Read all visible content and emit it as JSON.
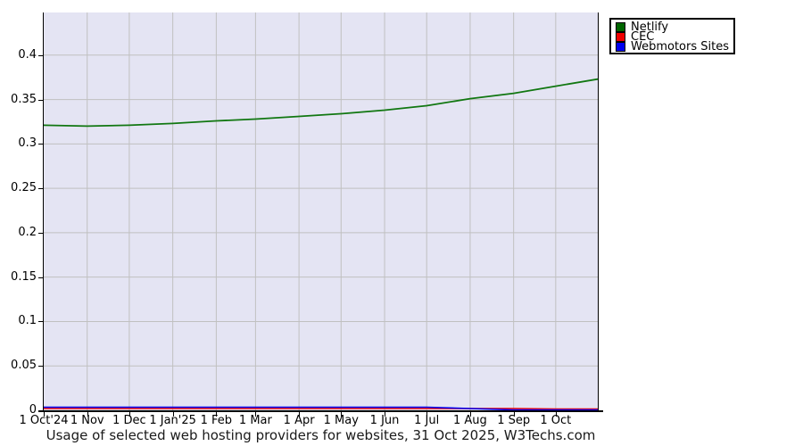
{
  "chart_data": {
    "type": "line",
    "title": "Usage of selected web hosting providers for websites, 31 Oct 2025, W3Techs.com",
    "xlabel": "",
    "ylabel": "",
    "ylim": [
      0,
      0.448
    ],
    "grid": true,
    "legend_position": "top-right",
    "colors": {
      "plot_background": "#e4e4f3",
      "gridline": "#c0c0c0",
      "axis": "#000000",
      "netlify_line": "#117711",
      "netlify_swatch": "#006600",
      "cec_line": "#ee0000",
      "webmotors_line": "#0000ee"
    },
    "total_days": 395,
    "x_tick_days": [
      0,
      31,
      61,
      92,
      123,
      151,
      182,
      212,
      243,
      273,
      304,
      335,
      365
    ],
    "x_tick_labels": [
      "1 Oct'24",
      "1 Nov",
      "1 Dec",
      "1 Jan'25",
      "1 Feb",
      "1 Mar",
      "1 Apr",
      "1 May",
      "1 Jun",
      "1 Jul",
      "1 Aug",
      "1 Sep",
      "1 Oct"
    ],
    "y_tick_values": [
      0,
      0.05,
      0.1,
      0.15,
      0.2,
      0.25,
      0.3,
      0.35,
      0.4
    ],
    "y_tick_labels": [
      "0",
      "0.05",
      "0.1",
      "0.15",
      "0.2",
      "0.25",
      "0.3",
      "0.35",
      "0.4"
    ],
    "series": [
      {
        "name": "Netlify",
        "color": "#117711",
        "swatch_color": "#006600",
        "x_days": [
          0,
          31,
          61,
          92,
          123,
          151,
          182,
          212,
          243,
          273,
          304,
          335,
          365,
          395
        ],
        "values": [
          0.321,
          0.32,
          0.321,
          0.323,
          0.326,
          0.328,
          0.331,
          0.334,
          0.338,
          0.343,
          0.351,
          0.357,
          0.365,
          0.373
        ]
      },
      {
        "name": "CEC",
        "color": "#ee0000",
        "swatch_color": "#ee0000",
        "x_days": [
          0,
          335,
          365,
          395
        ],
        "values": [
          0.002,
          0.002,
          0.0015,
          0.0015
        ]
      },
      {
        "name": "Webmotors Sites",
        "color": "#0000ee",
        "swatch_color": "#0000ee",
        "x_days": [
          0,
          243,
          273,
          304,
          335,
          395
        ],
        "values": [
          0.0035,
          0.0035,
          0.0035,
          0.002,
          0.0005,
          0.0005
        ]
      }
    ]
  }
}
